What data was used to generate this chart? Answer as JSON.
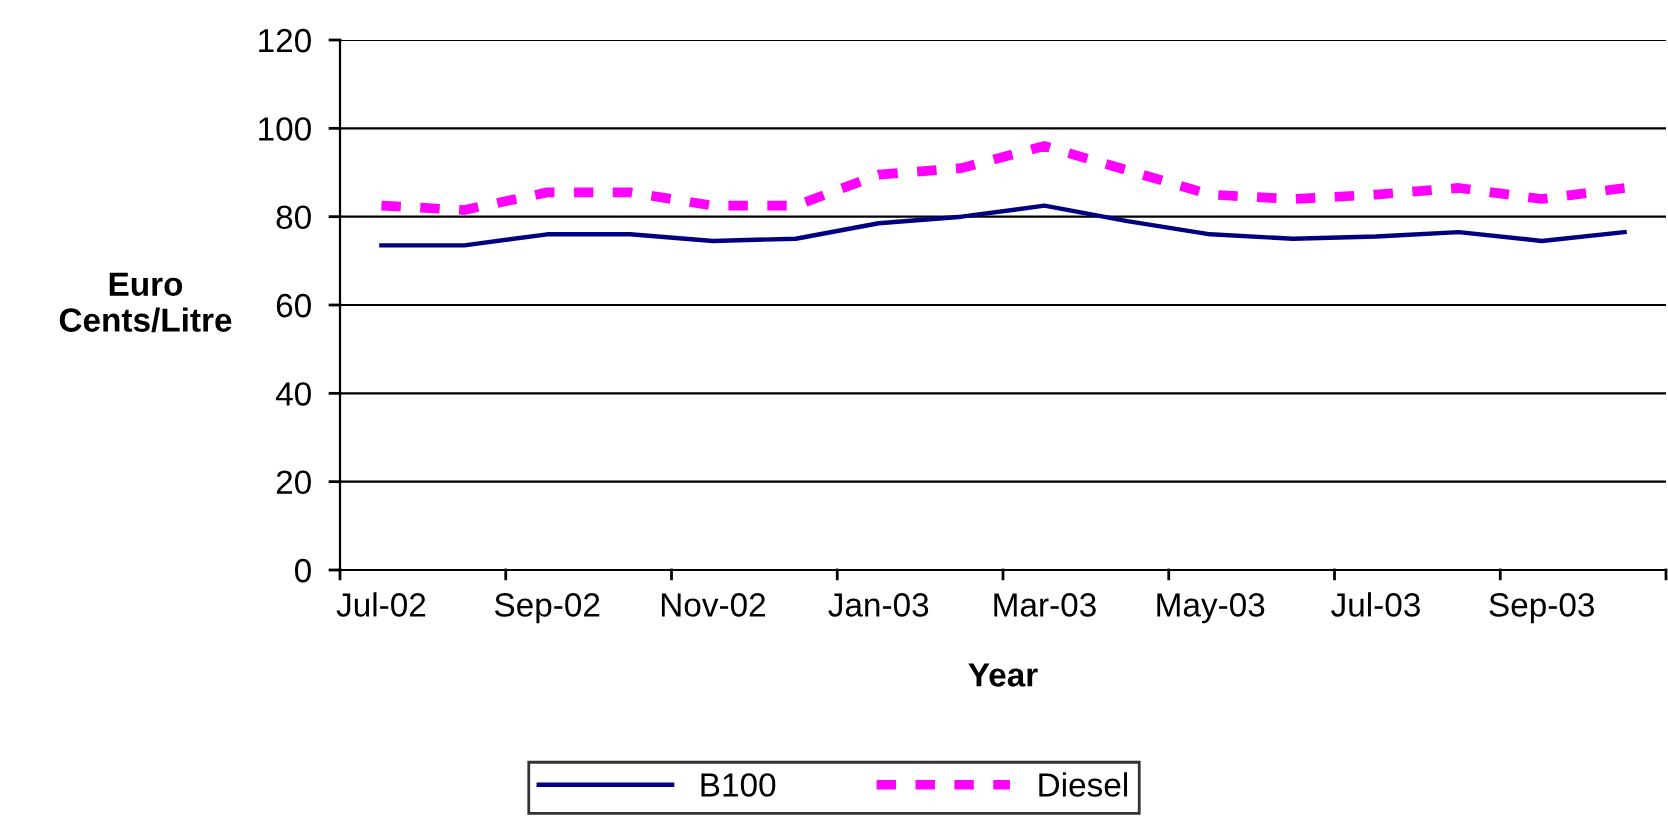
{
  "chart_data": {
    "type": "line",
    "xlabel": "Year",
    "ylabel": "Euro\nCents/Litre",
    "categories": [
      "Jul-02",
      null,
      "Sep-02",
      null,
      "Nov-02",
      null,
      "Jan-03",
      null,
      "Mar-03",
      null,
      "May-03",
      null,
      "Jul-03",
      null,
      "Sep-03",
      null
    ],
    "series": [
      {
        "name": "B100",
        "color": "#000080",
        "line_style": "solid",
        "values": [
          73.5,
          73.5,
          76,
          76,
          74.5,
          75,
          78.5,
          80,
          82.5,
          79,
          76,
          75,
          75.5,
          76.5,
          74.5,
          76.5
        ]
      },
      {
        "name": "Diesel",
        "color": "#ff00ff",
        "line_style": "dashed",
        "values": [
          82.5,
          81.5,
          85.5,
          85.5,
          82.5,
          82.5,
          89.5,
          91,
          96,
          90.5,
          85,
          84,
          85,
          86.5,
          84,
          86.5
        ]
      }
    ],
    "ylim": [
      0,
      120
    ],
    "yticks": [
      0,
      20,
      40,
      60,
      80,
      100,
      120
    ],
    "grid": "y",
    "legend": "bottom",
    "marker": "none"
  }
}
